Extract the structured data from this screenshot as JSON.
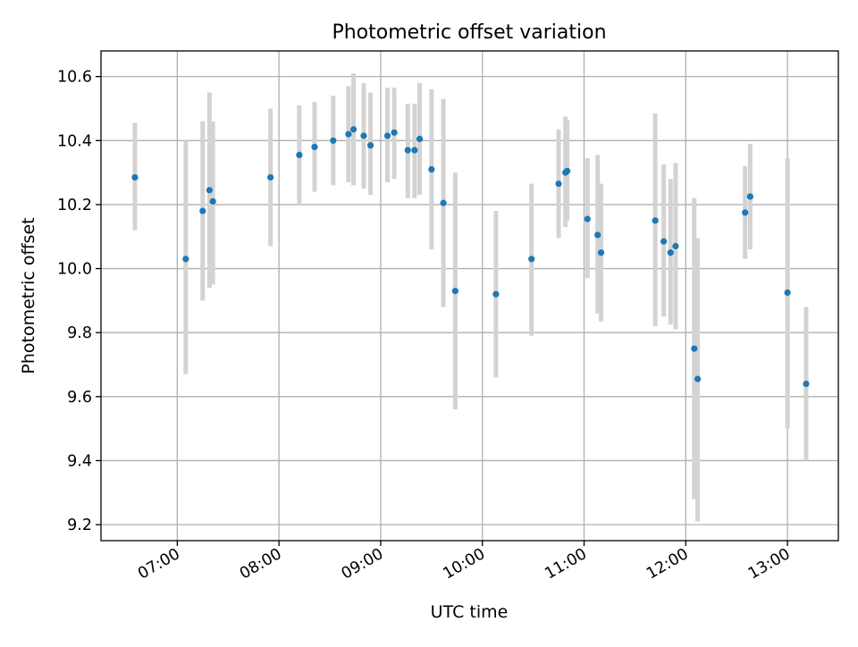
{
  "chart_data": {
    "type": "scatter",
    "title": "Photometric offset variation",
    "xlabel": "UTC time",
    "ylabel": "Photometric offset",
    "xlim": [
      "06:15",
      "13:30"
    ],
    "ylim": [
      9.15,
      10.68
    ],
    "x_ticks": [
      "07:00",
      "08:00",
      "09:00",
      "10:00",
      "11:00",
      "12:00",
      "13:00"
    ],
    "y_ticks": [
      "9.2",
      "9.4",
      "9.6",
      "9.8",
      "10.0",
      "10.2",
      "10.4",
      "10.6"
    ],
    "grid": true,
    "colors": {
      "point": "#1f77b4",
      "errorbar": "#d3d3d3",
      "grid": "#b0b0b0"
    },
    "points": [
      {
        "x": "06:35",
        "y": 10.285,
        "lo": 10.12,
        "hi": 10.455
      },
      {
        "x": "07:05",
        "y": 10.03,
        "lo": 9.67,
        "hi": 10.4
      },
      {
        "x": "07:15",
        "y": 10.18,
        "lo": 9.9,
        "hi": 10.46
      },
      {
        "x": "07:19",
        "y": 10.245,
        "lo": 9.94,
        "hi": 10.55
      },
      {
        "x": "07:21",
        "y": 10.21,
        "lo": 9.95,
        "hi": 10.46
      },
      {
        "x": "07:55",
        "y": 10.285,
        "lo": 10.07,
        "hi": 10.5
      },
      {
        "x": "08:12",
        "y": 10.355,
        "lo": 10.2,
        "hi": 10.51
      },
      {
        "x": "08:21",
        "y": 10.38,
        "lo": 10.24,
        "hi": 10.52
      },
      {
        "x": "08:32",
        "y": 10.4,
        "lo": 10.26,
        "hi": 10.54
      },
      {
        "x": "08:41",
        "y": 10.42,
        "lo": 10.27,
        "hi": 10.57
      },
      {
        "x": "08:44",
        "y": 10.435,
        "lo": 10.26,
        "hi": 10.61
      },
      {
        "x": "08:50",
        "y": 10.415,
        "lo": 10.25,
        "hi": 10.58
      },
      {
        "x": "08:54",
        "y": 10.385,
        "lo": 10.23,
        "hi": 10.55
      },
      {
        "x": "09:04",
        "y": 10.415,
        "lo": 10.27,
        "hi": 10.565
      },
      {
        "x": "09:08",
        "y": 10.425,
        "lo": 10.28,
        "hi": 10.565
      },
      {
        "x": "09:16",
        "y": 10.37,
        "lo": 10.22,
        "hi": 10.515
      },
      {
        "x": "09:20",
        "y": 10.37,
        "lo": 10.22,
        "hi": 10.515
      },
      {
        "x": "09:23",
        "y": 10.405,
        "lo": 10.23,
        "hi": 10.58
      },
      {
        "x": "09:30",
        "y": 10.31,
        "lo": 10.06,
        "hi": 10.56
      },
      {
        "x": "09:37",
        "y": 10.205,
        "lo": 9.88,
        "hi": 10.53
      },
      {
        "x": "09:44",
        "y": 9.93,
        "lo": 9.56,
        "hi": 10.3
      },
      {
        "x": "10:08",
        "y": 9.92,
        "lo": 9.66,
        "hi": 10.18
      },
      {
        "x": "10:29",
        "y": 10.03,
        "lo": 9.79,
        "hi": 10.265
      },
      {
        "x": "10:45",
        "y": 10.265,
        "lo": 10.095,
        "hi": 10.435
      },
      {
        "x": "10:49",
        "y": 10.3,
        "lo": 10.13,
        "hi": 10.475
      },
      {
        "x": "10:50",
        "y": 10.305,
        "lo": 10.15,
        "hi": 10.465
      },
      {
        "x": "11:02",
        "y": 10.155,
        "lo": 9.97,
        "hi": 10.345
      },
      {
        "x": "11:08",
        "y": 10.105,
        "lo": 9.86,
        "hi": 10.355
      },
      {
        "x": "11:10",
        "y": 10.05,
        "lo": 9.835,
        "hi": 10.265
      },
      {
        "x": "11:42",
        "y": 10.15,
        "lo": 9.82,
        "hi": 10.485
      },
      {
        "x": "11:47",
        "y": 10.085,
        "lo": 9.85,
        "hi": 10.325
      },
      {
        "x": "11:51",
        "y": 10.05,
        "lo": 9.825,
        "hi": 10.28
      },
      {
        "x": "11:54",
        "y": 10.07,
        "lo": 9.81,
        "hi": 10.33
      },
      {
        "x": "12:05",
        "y": 9.75,
        "lo": 9.28,
        "hi": 10.22
      },
      {
        "x": "12:07",
        "y": 9.655,
        "lo": 9.21,
        "hi": 10.095
      },
      {
        "x": "12:35",
        "y": 10.175,
        "lo": 10.03,
        "hi": 10.32
      },
      {
        "x": "12:38",
        "y": 10.225,
        "lo": 10.06,
        "hi": 10.39
      },
      {
        "x": "13:00",
        "y": 9.925,
        "lo": 9.5,
        "hi": 10.345
      },
      {
        "x": "13:11",
        "y": 9.64,
        "lo": 9.4,
        "hi": 9.88
      }
    ]
  }
}
